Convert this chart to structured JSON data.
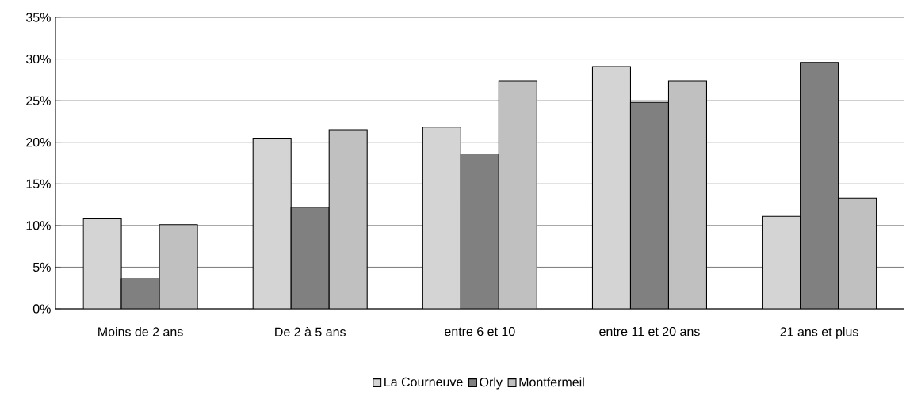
{
  "chart_data": {
    "type": "bar",
    "categories": [
      "Moins de 2 ans",
      "De 2 à 5 ans",
      "entre 6 et 10",
      "entre 11 et 20 ans",
      "21 ans et plus"
    ],
    "series": [
      {
        "name": "La Courneuve",
        "color": "#d4d4d4",
        "values": [
          10.8,
          20.5,
          21.8,
          29.1,
          11.1
        ]
      },
      {
        "name": "Orly",
        "color": "#808080",
        "values": [
          3.6,
          12.2,
          18.6,
          24.8,
          29.6
        ]
      },
      {
        "name": "Montfermeil",
        "color": "#c0c0c0",
        "values": [
          10.1,
          21.5,
          27.4,
          27.4,
          13.3
        ]
      }
    ],
    "ylim": [
      0,
      35
    ],
    "yticks": [
      {
        "value": 0,
        "label": "0%"
      },
      {
        "value": 5,
        "label": "5%"
      },
      {
        "value": 10,
        "label": "10%"
      },
      {
        "value": 15,
        "label": "15%"
      },
      {
        "value": 20,
        "label": "20%"
      },
      {
        "value": 25,
        "label": "25%"
      },
      {
        "value": 30,
        "label": "30%"
      },
      {
        "value": 35,
        "label": "35%"
      }
    ],
    "grid": "y",
    "legend": "bottom"
  }
}
